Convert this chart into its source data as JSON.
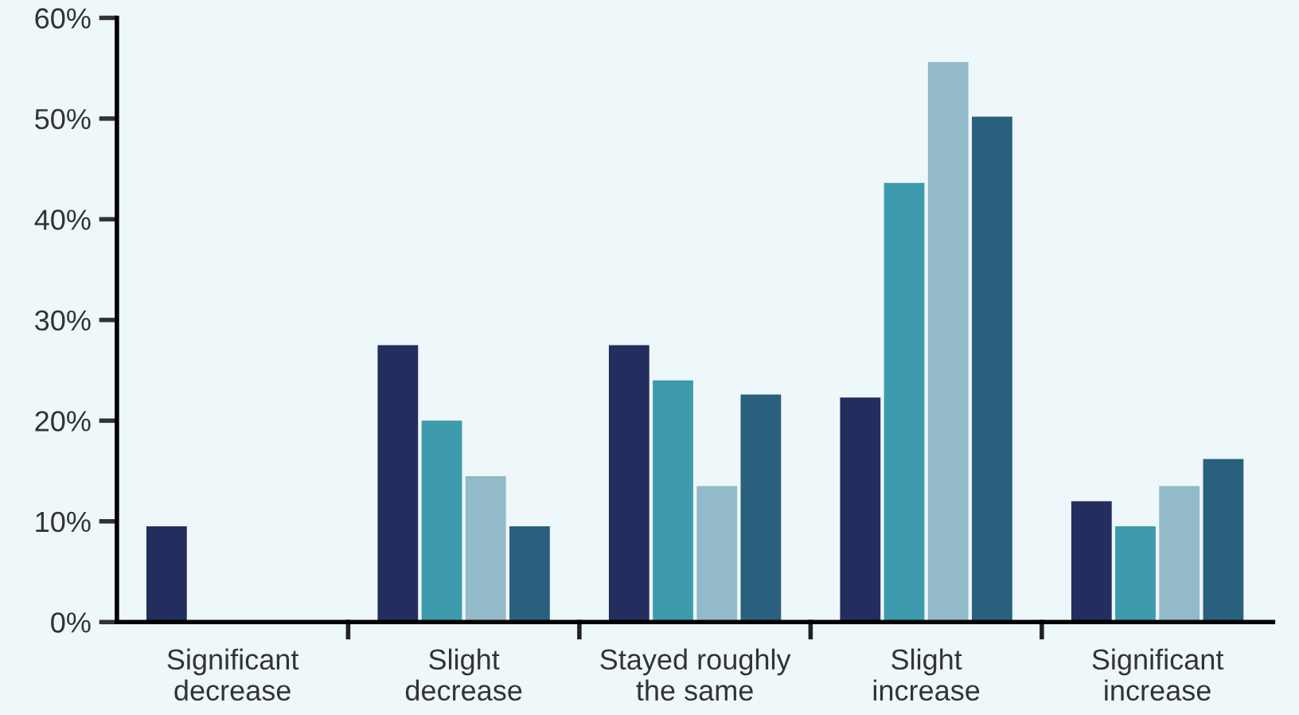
{
  "chart_data": {
    "type": "bar",
    "categories": [
      "Significant\ndecrease",
      "Slight\ndecrease",
      "Stayed roughly\nthe same",
      "Slight\nincrease",
      "Significant\nincrease"
    ],
    "series": [
      {
        "color": "#232d5e",
        "values": [
          9.5,
          27.5,
          27.5,
          22.3,
          12
        ]
      },
      {
        "color": "#3d9bad",
        "values": [
          0,
          20,
          24,
          43.6,
          9.5
        ]
      },
      {
        "color": "#92bac8",
        "values": [
          0,
          14.5,
          13.5,
          55.6,
          13.5
        ]
      },
      {
        "color": "#28607e",
        "values": [
          0,
          9.5,
          22.6,
          50.2,
          16.2
        ]
      }
    ],
    "ylim": [
      0,
      60
    ],
    "yticks": [
      {
        "value": 0,
        "label": "0%"
      },
      {
        "value": 10,
        "label": "10%"
      },
      {
        "value": 20,
        "label": "20%"
      },
      {
        "value": 30,
        "label": "30%"
      },
      {
        "value": 40,
        "label": "40%"
      },
      {
        "value": 50,
        "label": "50%"
      },
      {
        "value": 60,
        "label": "60%"
      }
    ],
    "grid": false,
    "legend": false
  }
}
